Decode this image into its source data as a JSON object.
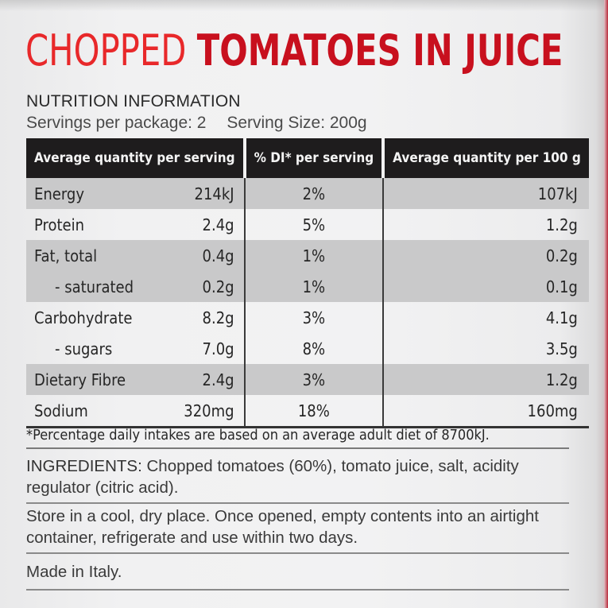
{
  "product": {
    "title_part1": "CHOPPED",
    "title_part2": "TOMATOES IN JUICE",
    "colors": {
      "title_light_red": "#e8282a",
      "title_dark_red": "#c8101e",
      "header_bg": "#1e1c1d",
      "row_shade": "#c9c9ca"
    }
  },
  "nutrition": {
    "heading": "NUTRITION INFORMATION",
    "servings_per_package": "Servings per package: 2",
    "serving_size": "Serving Size: 200g",
    "columns": [
      "Average quantity per serving",
      "% DI* per serving",
      "Average quantity per 100 g"
    ],
    "rows": [
      {
        "name": "Energy",
        "per_serving": "214kJ",
        "di": "2%",
        "per_100g": "107kJ"
      },
      {
        "name": "Protein",
        "per_serving": "2.4g",
        "di": "5%",
        "per_100g": "1.2g"
      },
      {
        "name": "Fat, total",
        "per_serving": "0.4g",
        "di": "1%",
        "per_100g": "0.2g"
      },
      {
        "name": "- saturated",
        "per_serving": "0.2g",
        "di": "1%",
        "per_100g": "0.1g"
      },
      {
        "name": "Carbohydrate",
        "per_serving": "8.2g",
        "di": "3%",
        "per_100g": "4.1g"
      },
      {
        "name": "- sugars",
        "per_serving": "7.0g",
        "di": "8%",
        "per_100g": "3.5g"
      },
      {
        "name": "Dietary Fibre",
        "per_serving": "2.4g",
        "di": "3%",
        "per_100g": "1.2g"
      },
      {
        "name": "Sodium",
        "per_serving": "320mg",
        "di": "18%",
        "per_100g": "160mg"
      }
    ],
    "footnote": "*Percentage daily intakes are based on an average adult diet of 8700kJ."
  },
  "ingredients": {
    "label": "INGREDIENTS:",
    "text": " Chopped tomatoes (60%), tomato juice, salt, acidity regulator (citric acid)."
  },
  "storage": "Store in a cool, dry place. Once opened, empty contents into an airtight container, refrigerate and use within two days.",
  "origin": "Made in Italy."
}
